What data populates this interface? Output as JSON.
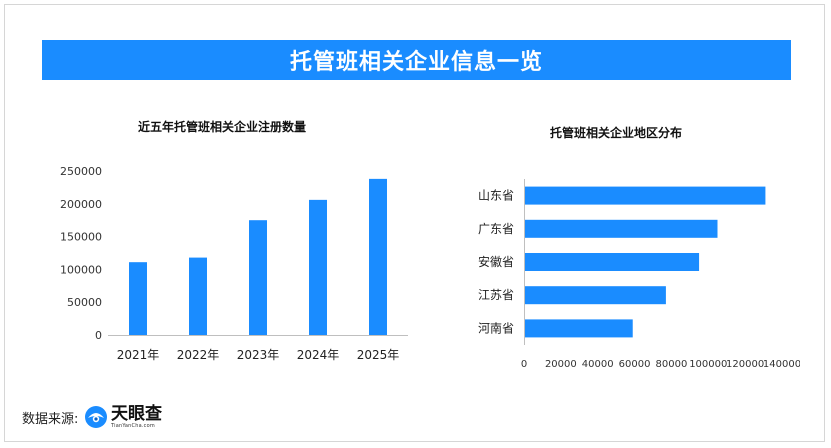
{
  "page": {
    "title": "托管班相关企业信息一览",
    "source_label": "数据来源:",
    "logo_name": "天眼查",
    "logo_url": "TianYanCha.com"
  },
  "colors": {
    "accent": "#1a8cff",
    "bar": "#1a8cff",
    "axis": "#bfbfbf"
  },
  "chart_data": [
    {
      "type": "bar",
      "title": "近五年托管班相关企业注册数量",
      "categories": [
        "2021年",
        "2022年",
        "2023年",
        "2024年",
        "2025年"
      ],
      "values": [
        111000,
        118000,
        175000,
        206000,
        238000
      ],
      "ylim": [
        0,
        250000
      ],
      "yticks": [
        "0",
        "50000",
        "100000",
        "150000",
        "200000",
        "250000"
      ],
      "xlabel": "",
      "ylabel": "",
      "grid": false
    },
    {
      "type": "bar",
      "orientation": "horizontal",
      "title": "托管班相关企业地区分布",
      "categories": [
        "山东省",
        "广东省",
        "安徽省",
        "江苏省",
        "河南省"
      ],
      "values": [
        131000,
        105000,
        95000,
        77000,
        59000
      ],
      "xlim": [
        0,
        140000
      ],
      "xticks": [
        "0",
        "20000",
        "40000",
        "60000",
        "80000",
        "100000",
        "120000",
        "140000"
      ],
      "xlabel": "",
      "ylabel": "",
      "grid": false
    }
  ]
}
